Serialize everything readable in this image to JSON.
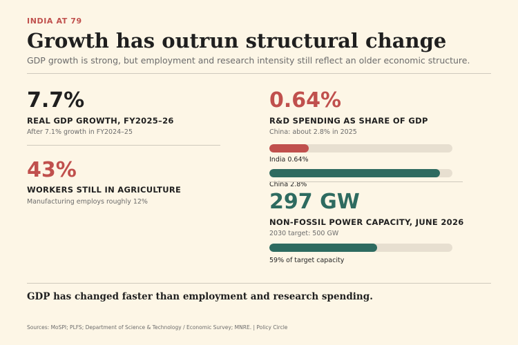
{
  "header": {
    "kicker": "INDIA AT 79",
    "title": "Growth has outrun structural change",
    "subtitle": "GDP growth is strong, but employment and research intensity still reflect an older economic structure."
  },
  "left": {
    "gdp": {
      "value": "7.7%",
      "label": "REAL GDP GROWTH, FY2025–26",
      "note": "After 7.1% growth in FY2024–25"
    },
    "agriculture": {
      "value": "43%",
      "label": "WORKERS STILL IN AGRICULTURE",
      "note": "Manufacturing employs roughly 12%"
    }
  },
  "right": {
    "rnd": {
      "value": "0.64%",
      "label": "R&D SPENDING AS SHARE OF GDP",
      "note": "China: about 2.8% in 2025",
      "bars": [
        {
          "label": "India 0.64%",
          "value": 0.64,
          "color": "red"
        },
        {
          "label": "China 2.8%",
          "value": 2.8,
          "color": "green"
        }
      ],
      "scale_max": 3.0
    },
    "power": {
      "value": "297 GW",
      "label": "NON-FOSSIL POWER CAPACITY, JUNE 2026",
      "note": "2030 target: 500 GW",
      "progress_fraction": 0.59,
      "progress_label": "59% of target capacity"
    }
  },
  "colors": {
    "accent_red": "#c0504d",
    "accent_green": "#2e6b60",
    "background": "#fdf6e6",
    "track": "#e7dfd0"
  },
  "takeaway": "GDP has changed faster than employment and research spending.",
  "sources": "Sources: MoSPI; PLFS; Department of Science & Technology / Economic Survey; MNRE.  |  Policy Circle"
}
